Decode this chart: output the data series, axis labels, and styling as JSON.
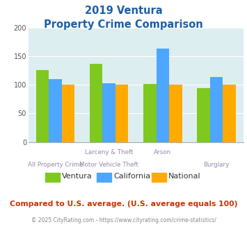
{
  "title_line1": "2019 Ventura",
  "title_line2": "Property Crime Comparison",
  "cat_labels_top": [
    "",
    "Larceny & Theft",
    "Arson",
    ""
  ],
  "cat_labels_bot": [
    "All Property Crime",
    "Motor Vehicle Theft",
    "",
    "Burglary"
  ],
  "series": {
    "Ventura": [
      126,
      136,
      101,
      94
    ],
    "California": [
      110,
      103,
      163,
      113
    ],
    "National": [
      100,
      100,
      100,
      100
    ]
  },
  "colors": {
    "Ventura": "#7ec820",
    "California": "#4da6ff",
    "National": "#ffaa00"
  },
  "ylim": [
    0,
    200
  ],
  "yticks": [
    0,
    50,
    100,
    150,
    200
  ],
  "bg_color": "#ddeef0",
  "title_color": "#1a5fa8",
  "subtitle_note": "Compared to U.S. average. (U.S. average equals 100)",
  "subtitle_note_color": "#cc3300",
  "footer": "© 2025 CityRating.com - https://www.cityrating.com/crime-statistics/",
  "footer_color": "#888888"
}
